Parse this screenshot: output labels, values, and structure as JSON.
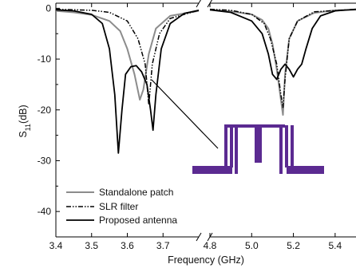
{
  "chart_data": {
    "type": "line",
    "title": "",
    "xlabel": "Frequency (GHz)",
    "ylabel_main": "S",
    "ylabel_sub": "11",
    "ylabel_unit": "(dB)",
    "x_axis_break": true,
    "x_segments": [
      {
        "range": [
          3.4,
          3.8
        ],
        "ticks": [
          "3.4",
          "3.5",
          "3.6",
          "3.7"
        ]
      },
      {
        "range": [
          4.8,
          5.5
        ],
        "ticks": [
          "4.8",
          "5.0",
          "5.2",
          "5.4"
        ]
      }
    ],
    "ylim": [
      -45,
      1
    ],
    "yticks": [
      "0",
      "-10",
      "-20",
      "-30",
      "-40"
    ],
    "legend_placement": "bottom-left",
    "inset": "filter-layout-drawing",
    "colors": {
      "standalone": "#8c8c8c",
      "slr": "#000000",
      "proposed": "#000000",
      "inset": "#5b2a91"
    },
    "series": [
      {
        "name": "Standalone patch",
        "style": "solid-gray",
        "points": [
          [
            3.4,
            -0.5
          ],
          [
            3.45,
            -0.8
          ],
          [
            3.5,
            -1.3
          ],
          [
            3.55,
            -2.5
          ],
          [
            3.58,
            -4.5
          ],
          [
            3.6,
            -8
          ],
          [
            3.62,
            -13
          ],
          [
            3.635,
            -18
          ],
          [
            3.645,
            -16
          ],
          [
            3.66,
            -9
          ],
          [
            3.68,
            -4
          ],
          [
            3.72,
            -1.5
          ],
          [
            3.8,
            -0.5
          ],
          [
            4.8,
            -0.3
          ],
          [
            4.9,
            -0.6
          ],
          [
            5.0,
            -1.2
          ],
          [
            5.05,
            -2.3
          ],
          [
            5.08,
            -4
          ],
          [
            5.1,
            -7
          ],
          [
            5.12,
            -12
          ],
          [
            5.14,
            -18
          ],
          [
            5.15,
            -21
          ],
          [
            5.16,
            -13
          ],
          [
            5.18,
            -6
          ],
          [
            5.22,
            -2.5
          ],
          [
            5.3,
            -0.9
          ],
          [
            5.4,
            -0.4
          ],
          [
            5.5,
            -0.3
          ]
        ]
      },
      {
        "name": "SLR filter",
        "style": "dash-dot-dot",
        "points": [
          [
            3.4,
            -0.2
          ],
          [
            3.5,
            -0.4
          ],
          [
            3.55,
            -0.8
          ],
          [
            3.6,
            -2.5
          ],
          [
            3.63,
            -6
          ],
          [
            3.65,
            -11
          ],
          [
            3.66,
            -19
          ],
          [
            3.67,
            -11
          ],
          [
            3.69,
            -5
          ],
          [
            3.72,
            -2
          ],
          [
            3.8,
            -0.4
          ],
          [
            4.8,
            -0.2
          ],
          [
            4.9,
            -0.4
          ],
          [
            5.0,
            -1.2
          ],
          [
            5.06,
            -3
          ],
          [
            5.09,
            -6
          ],
          [
            5.12,
            -11
          ],
          [
            5.14,
            -17
          ],
          [
            5.15,
            -19.5
          ],
          [
            5.16,
            -14
          ],
          [
            5.18,
            -6
          ],
          [
            5.22,
            -2.5
          ],
          [
            5.3,
            -0.7
          ],
          [
            5.5,
            -0.2
          ]
        ]
      },
      {
        "name": "Proposed antenna",
        "style": "solid-black",
        "points": [
          [
            3.4,
            -0.3
          ],
          [
            3.45,
            -0.5
          ],
          [
            3.5,
            -1.2
          ],
          [
            3.53,
            -3
          ],
          [
            3.55,
            -8
          ],
          [
            3.565,
            -17
          ],
          [
            3.575,
            -28.5
          ],
          [
            3.585,
            -20
          ],
          [
            3.595,
            -13
          ],
          [
            3.61,
            -11.5
          ],
          [
            3.625,
            -11.3
          ],
          [
            3.64,
            -12.5
          ],
          [
            3.655,
            -15
          ],
          [
            3.665,
            -20
          ],
          [
            3.672,
            -24
          ],
          [
            3.68,
            -17
          ],
          [
            3.695,
            -8
          ],
          [
            3.72,
            -3
          ],
          [
            3.76,
            -1
          ],
          [
            3.8,
            -0.4
          ],
          [
            4.8,
            -0.3
          ],
          [
            4.9,
            -0.8
          ],
          [
            5.0,
            -2.5
          ],
          [
            5.05,
            -5
          ],
          [
            5.08,
            -9
          ],
          [
            5.1,
            -13
          ],
          [
            5.12,
            -14
          ],
          [
            5.14,
            -12
          ],
          [
            5.16,
            -11
          ],
          [
            5.18,
            -12
          ],
          [
            5.2,
            -13.5
          ],
          [
            5.22,
            -12
          ],
          [
            5.24,
            -11
          ],
          [
            5.26,
            -8
          ],
          [
            5.29,
            -4
          ],
          [
            5.33,
            -1.5
          ],
          [
            5.4,
            -0.5
          ],
          [
            5.5,
            -0.2
          ]
        ]
      }
    ]
  }
}
